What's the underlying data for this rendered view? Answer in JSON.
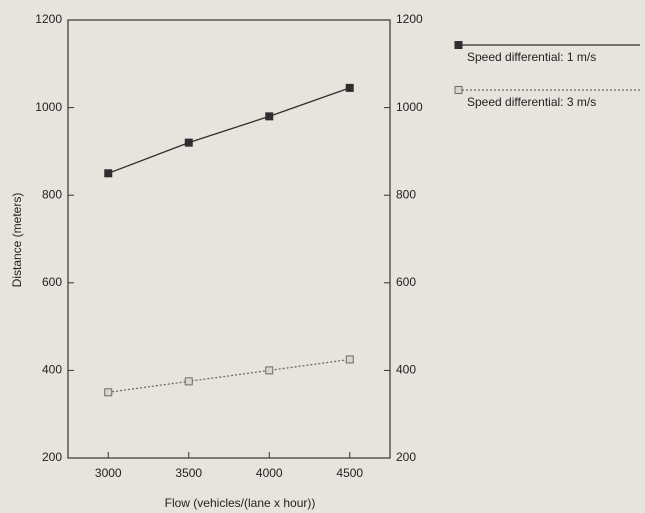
{
  "chart_data": {
    "type": "line",
    "x_label": "Flow (vehicles/(lane x hour))",
    "y_label": "Distance (meters)",
    "x": [
      3000,
      3500,
      4000,
      4500
    ],
    "xlim": [
      2750,
      4750
    ],
    "xticks": [
      3000,
      3500,
      4000,
      4500
    ],
    "ylim": [
      200,
      1200
    ],
    "yticks": [
      200,
      400,
      600,
      800,
      1000,
      1200
    ],
    "y2lim": [
      200,
      1200
    ],
    "y2ticks": [
      200,
      400,
      600,
      800,
      1000,
      1200
    ],
    "legend": "outside-right",
    "series": [
      {
        "name": "Speed differential: 1 m/s",
        "color": "#2e2e2e",
        "line_style": "solid",
        "values": [
          850,
          920,
          980,
          1045
        ]
      },
      {
        "name": "Speed differential: 3 m/s",
        "color": "#6a6a6a",
        "line_style": "dotted",
        "values": [
          350,
          375,
          400,
          425
        ]
      }
    ]
  }
}
